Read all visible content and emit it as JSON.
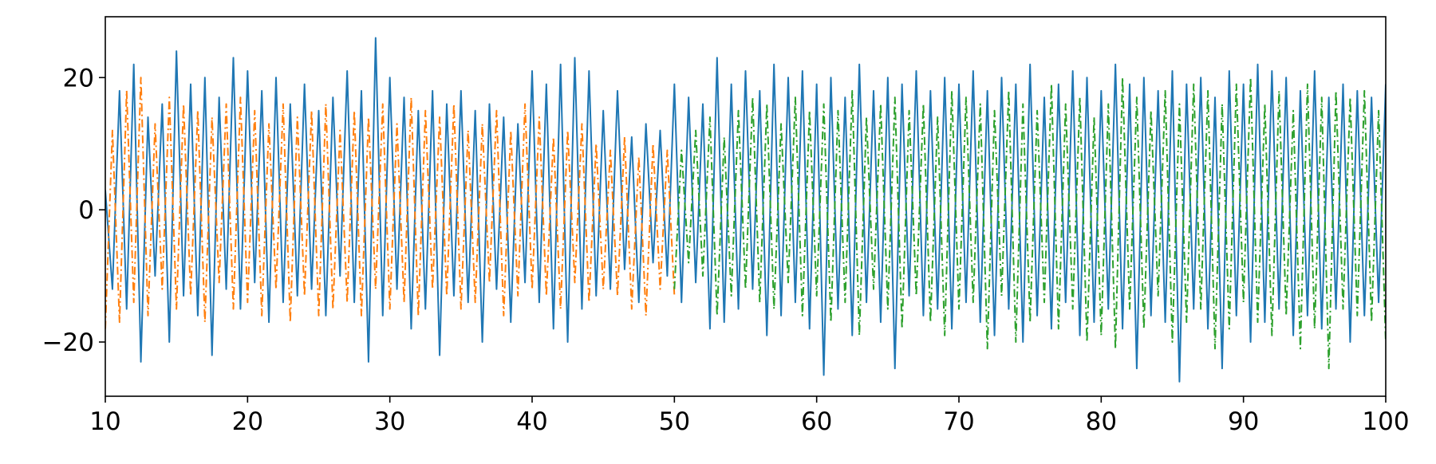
{
  "chart_data": {
    "type": "line",
    "x": [
      10,
      10.5,
      11,
      11.5,
      12,
      12.5,
      13,
      13.5,
      14,
      14.5,
      15,
      15.5,
      16,
      16.5,
      17,
      17.5,
      18,
      18.5,
      19,
      19.5,
      20,
      20.5,
      21,
      21.5,
      22,
      22.5,
      23,
      23.5,
      24,
      24.5,
      25,
      25.5,
      26,
      26.5,
      27,
      27.5,
      28,
      28.5,
      29,
      29.5,
      30,
      30.5,
      31,
      31.5,
      32,
      32.5,
      33,
      33.5,
      34,
      34.5,
      35,
      35.5,
      36,
      36.5,
      37,
      37.5,
      38,
      38.5,
      39,
      39.5,
      40,
      40.5,
      41,
      41.5,
      42,
      42.5,
      43,
      43.5,
      44,
      44.5,
      45,
      45.5,
      46,
      46.5,
      47,
      47.5,
      48,
      48.5,
      49,
      49.5,
      50,
      50.5,
      51,
      51.5,
      52,
      52.5,
      53,
      53.5,
      54,
      54.5,
      55,
      55.5,
      56,
      56.5,
      57,
      57.5,
      58,
      58.5,
      59,
      59.5,
      60,
      60.5,
      61,
      61.5,
      62,
      62.5,
      63,
      63.5,
      64,
      64.5,
      65,
      65.5,
      66,
      66.5,
      67,
      67.5,
      68,
      68.5,
      69,
      69.5,
      70,
      70.5,
      71,
      71.5,
      72,
      72.5,
      73,
      73.5,
      74,
      74.5,
      75,
      75.5,
      76,
      76.5,
      77,
      77.5,
      78,
      78.5,
      79,
      79.5,
      80,
      80.5,
      81,
      81.5,
      82,
      82.5,
      83,
      83.5,
      84,
      84.5,
      85,
      85.5,
      86,
      86.5,
      87,
      87.5,
      88,
      88.5,
      89,
      89.5,
      90,
      90.5,
      91,
      91.5,
      92,
      92.5,
      93,
      93.5,
      94,
      94.5,
      95,
      95.5,
      96,
      96.5,
      97,
      97.5,
      98,
      98.5,
      99,
      99.5,
      100
    ],
    "series": [
      {
        "color": "#1f77b4",
        "linestyle": "solid",
        "values": [
          3,
          -12,
          18,
          -15,
          22,
          -23,
          14,
          -10,
          16,
          -20,
          24,
          -13,
          19,
          -16,
          20,
          -22,
          17,
          -12,
          23,
          -15,
          21,
          -11,
          18,
          -17,
          20,
          -14,
          16,
          -13,
          19,
          -12,
          15,
          -16,
          17,
          -10,
          21,
          -14,
          18,
          -23,
          26,
          -16,
          20,
          -12,
          17,
          -18,
          15,
          -15,
          18,
          -22,
          16,
          -13,
          18,
          -14,
          15,
          -20,
          16,
          -12,
          14,
          -17,
          13,
          -11,
          21,
          -14,
          19,
          -18,
          22,
          -20,
          23,
          -15,
          21,
          -13,
          15,
          -12,
          18,
          -9,
          11,
          -14,
          13,
          -8,
          12,
          -10,
          19,
          -14,
          17,
          -11,
          16,
          -18,
          23,
          -17,
          19,
          -15,
          21,
          -12,
          18,
          -19,
          22,
          -16,
          20,
          -14,
          21,
          -18,
          19,
          -25,
          20,
          -15,
          17,
          -19,
          22,
          -14,
          18,
          -17,
          20,
          -24,
          19,
          -13,
          21,
          -16,
          18,
          -15,
          20,
          -18,
          19,
          -14,
          21,
          -17,
          18,
          -19,
          20,
          -15,
          19,
          -20,
          22,
          -16,
          17,
          -18,
          19,
          -14,
          21,
          -19,
          20,
          -17,
          18,
          -15,
          22,
          -18,
          19,
          -24,
          20,
          -16,
          18,
          -17,
          21,
          -26,
          19,
          -15,
          20,
          -18,
          17,
          -24,
          21,
          -16,
          19,
          -20,
          22,
          -17,
          21,
          -15,
          20,
          -19,
          18,
          -16,
          21,
          -18,
          17,
          -15,
          19,
          -20,
          18,
          -16,
          17,
          -14,
          19
        ]
      },
      {
        "color": "#ff7f0e",
        "linestyle": "dashdot",
        "values": [
          -18,
          12,
          -17,
          18,
          -14,
          20,
          -16,
          13,
          -12,
          17,
          -15,
          16,
          -13,
          15,
          -17,
          14,
          -11,
          16,
          -15,
          17,
          -14,
          15,
          -16,
          13,
          -12,
          16,
          -17,
          14,
          -13,
          15,
          -16,
          16,
          -15,
          12,
          -14,
          15,
          -16,
          14,
          -12,
          16,
          -15,
          13,
          -14,
          17,
          -16,
          15,
          -12,
          14,
          -13,
          16,
          -15,
          12,
          -14,
          13,
          -11,
          15,
          -16,
          12,
          -13,
          16,
          -12,
          14,
          -13,
          11,
          -15,
          12,
          -11,
          13,
          -14,
          10,
          -12,
          9,
          -13,
          11,
          -15,
          8,
          -16,
          10,
          -12,
          9,
          -13,
          null,
          null,
          null,
          null,
          null,
          null,
          null,
          null,
          null,
          null,
          null,
          null,
          null,
          null,
          null,
          null,
          null,
          null,
          null,
          null,
          null,
          null,
          null,
          null,
          null,
          null,
          null,
          null,
          null,
          null,
          null,
          null,
          null,
          null,
          null,
          null,
          null,
          null,
          null,
          null,
          null,
          null,
          null,
          null,
          null,
          null,
          null,
          null,
          null,
          null,
          null,
          null,
          null,
          null,
          null,
          null,
          null,
          null,
          null,
          null,
          null,
          null,
          null,
          null,
          null,
          null,
          null,
          null,
          null,
          null,
          null,
          null,
          null,
          null,
          null,
          null,
          null,
          null,
          null,
          null,
          null,
          null,
          null,
          null,
          null,
          null,
          null,
          null,
          null,
          null,
          null,
          null,
          null,
          null,
          null,
          null,
          null,
          null,
          null,
          null
        ]
      },
      {
        "color": "#2ca02c",
        "linestyle": "dashdot",
        "values": [
          null,
          null,
          null,
          null,
          null,
          null,
          null,
          null,
          null,
          null,
          null,
          null,
          null,
          null,
          null,
          null,
          null,
          null,
          null,
          null,
          null,
          null,
          null,
          null,
          null,
          null,
          null,
          null,
          null,
          null,
          null,
          null,
          null,
          null,
          null,
          null,
          null,
          null,
          null,
          null,
          null,
          null,
          null,
          null,
          null,
          null,
          null,
          null,
          null,
          null,
          null,
          null,
          null,
          null,
          null,
          null,
          null,
          null,
          null,
          null,
          null,
          null,
          null,
          null,
          null,
          null,
          null,
          null,
          null,
          null,
          null,
          null,
          null,
          null,
          null,
          null,
          null,
          null,
          null,
          null,
          -12,
          9,
          -8,
          12,
          -10,
          14,
          -16,
          11,
          -13,
          15,
          -12,
          17,
          -14,
          16,
          -15,
          13,
          -11,
          17,
          -16,
          15,
          -13,
          16,
          -17,
          15,
          -14,
          18,
          -19,
          14,
          -12,
          16,
          -15,
          17,
          -18,
          15,
          -13,
          16,
          -17,
          14,
          -19,
          18,
          -15,
          17,
          -14,
          16,
          -21,
          15,
          -13,
          18,
          -20,
          16,
          -17,
          15,
          -14,
          19,
          -18,
          16,
          -15,
          17,
          -20,
          14,
          -19,
          16,
          -21,
          20,
          -15,
          17,
          -18,
          15,
          -13,
          18,
          -20,
          16,
          -17,
          19,
          -15,
          18,
          -21,
          16,
          -18,
          19,
          -14,
          20,
          -17,
          16,
          -19,
          18,
          -16,
          15,
          -21,
          19,
          -18,
          17,
          -24,
          18,
          -15,
          17,
          -16,
          18,
          -17,
          15,
          -20
        ]
      }
    ],
    "xlim": [
      10,
      100
    ],
    "xticks": [
      10,
      20,
      30,
      40,
      50,
      60,
      70,
      80,
      90,
      100
    ],
    "ylim": [
      -28.2,
      29.2
    ],
    "yticks": [
      {
        "value": -20,
        "label": "−20"
      },
      0,
      20
    ],
    "grid": false
  }
}
